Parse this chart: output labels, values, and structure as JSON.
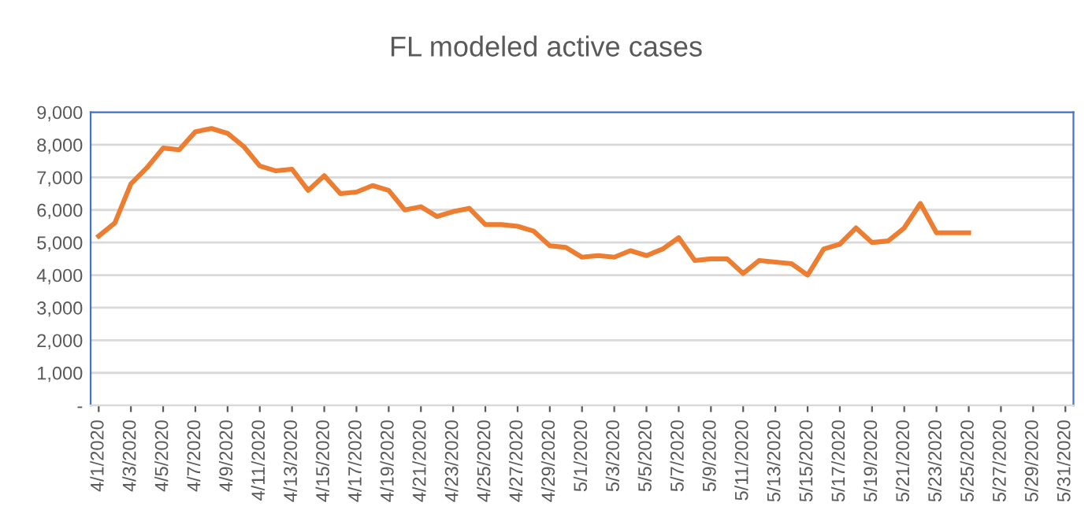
{
  "chart_data": {
    "type": "line",
    "title": "FL modeled active cases",
    "categories": [
      "4/1/2020",
      null,
      "4/3/2020",
      null,
      "4/5/2020",
      null,
      "4/7/2020",
      null,
      "4/9/2020",
      null,
      "4/11/2020",
      null,
      "4/13/2020",
      null,
      "4/15/2020",
      null,
      "4/17/2020",
      null,
      "4/19/2020",
      null,
      "4/21/2020",
      null,
      "4/23/2020",
      null,
      "4/25/2020",
      null,
      "4/27/2020",
      null,
      "4/29/2020",
      null,
      "5/1/2020",
      null,
      "5/3/2020",
      null,
      "5/5/2020",
      null,
      "5/7/2020",
      null,
      "5/9/2020",
      null,
      "5/11/2020",
      null,
      "5/13/2020",
      null,
      "5/15/2020",
      null,
      "5/17/2020",
      null,
      "5/19/2020",
      null,
      "5/21/2020",
      null,
      "5/23/2020",
      null,
      "5/25/2020",
      null,
      "5/27/2020",
      null,
      "5/29/2020",
      null,
      "5/31/2020"
    ],
    "series": [
      {
        "color": "#ed7d31",
        "values": [
          5200,
          5600,
          6800,
          7300,
          7900,
          7850,
          8400,
          8500,
          8350,
          7950,
          7350,
          7200,
          7250,
          6600,
          7050,
          6500,
          6550,
          6750,
          6600,
          6000,
          6100,
          5800,
          5950,
          6050,
          5550,
          5550,
          5500,
          5350,
          4900,
          4850,
          4550,
          4600,
          4550,
          4750,
          4600,
          4800,
          5150,
          4450,
          4500,
          4500,
          4050,
          4450,
          4400,
          4350,
          4000,
          4800,
          4950,
          5450,
          5000,
          5050,
          5450,
          6200,
          5300,
          5300,
          5300,
          null,
          null,
          null,
          null,
          null,
          null
        ]
      }
    ],
    "ylim": [
      0,
      9000
    ],
    "yticks": [
      {
        "value": 0,
        "label": "-"
      },
      {
        "value": 1000,
        "label": "1,000"
      },
      {
        "value": 2000,
        "label": "2,000"
      },
      {
        "value": 3000,
        "label": "3,000"
      },
      {
        "value": 4000,
        "label": "4,000"
      },
      {
        "value": 5000,
        "label": "5,000"
      },
      {
        "value": 6000,
        "label": "6,000"
      },
      {
        "value": 7000,
        "label": "7,000"
      },
      {
        "value": 8000,
        "label": "8,000"
      },
      {
        "value": 9000,
        "label": "9,000"
      }
    ],
    "grid": "y",
    "legend": false,
    "marker": "none",
    "line_style": "solid"
  }
}
